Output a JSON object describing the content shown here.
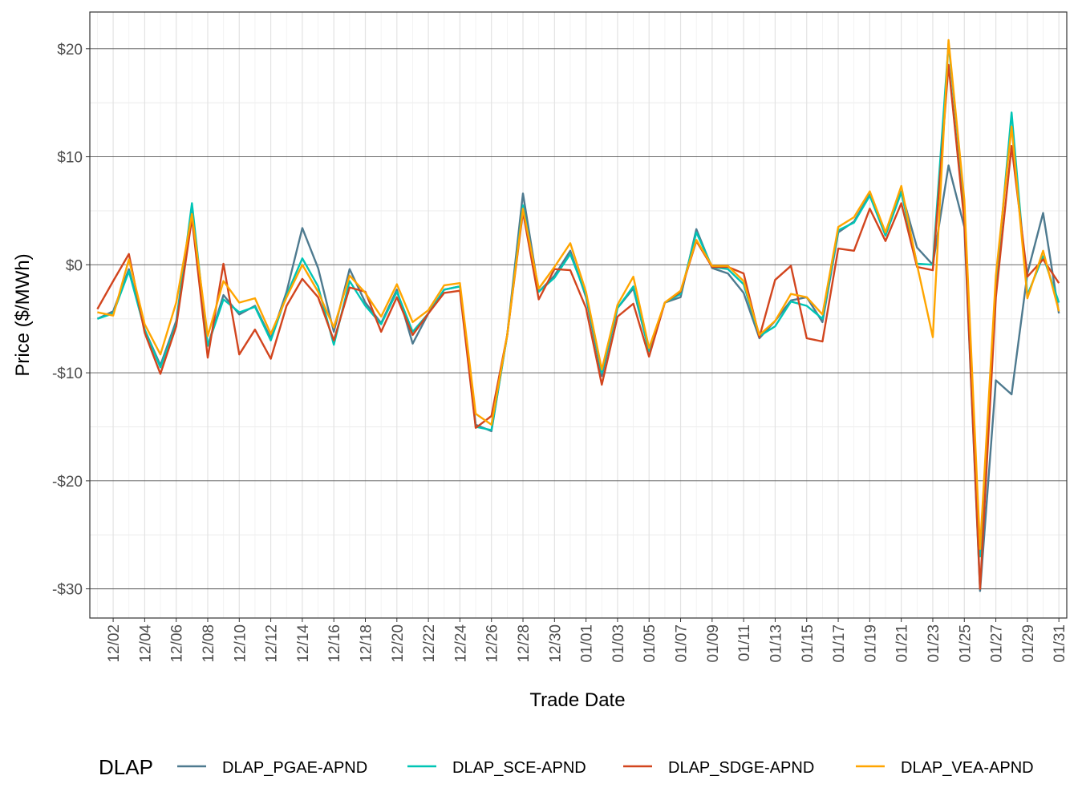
{
  "chart_data": {
    "type": "line",
    "xlabel": "Trade Date",
    "ylabel": "Price ($/MWh)",
    "ylim": [
      -32.7,
      23.4
    ],
    "yticks": [
      20,
      10,
      0,
      -10,
      -20,
      -30
    ],
    "ytick_labels": [
      "$20",
      "$10",
      "$0",
      "-$10",
      "-$20",
      "-$30"
    ],
    "grid": true,
    "legend_title": "DLAP",
    "legend_position": "bottom",
    "x": [
      "12/01",
      "12/02",
      "12/03",
      "12/04",
      "12/05",
      "12/06",
      "12/07",
      "12/08",
      "12/09",
      "12/10",
      "12/11",
      "12/12",
      "12/13",
      "12/14",
      "12/15",
      "12/16",
      "12/17",
      "12/18",
      "12/19",
      "12/20",
      "12/21",
      "12/22",
      "12/23",
      "12/24",
      "12/25",
      "12/26",
      "12/27",
      "12/28",
      "12/29",
      "12/30",
      "12/31",
      "01/01",
      "01/02",
      "01/03",
      "01/04",
      "01/05",
      "01/06",
      "01/07",
      "01/08",
      "01/09",
      "01/10",
      "01/11",
      "01/12",
      "01/13",
      "01/14",
      "01/15",
      "01/16",
      "01/17",
      "01/18",
      "01/19",
      "01/20",
      "01/21",
      "01/22",
      "01/23",
      "01/24",
      "01/25",
      "01/26",
      "01/27",
      "01/28",
      "01/29",
      "01/30",
      "01/31"
    ],
    "xtick_labels": [
      "12/02",
      "12/04",
      "12/06",
      "12/08",
      "12/10",
      "12/12",
      "12/14",
      "12/16",
      "12/18",
      "12/20",
      "12/22",
      "12/24",
      "12/26",
      "12/28",
      "12/30",
      "01/01",
      "01/03",
      "01/05",
      "01/07",
      "01/09",
      "01/11",
      "01/13",
      "01/15",
      "01/17",
      "01/19",
      "01/21",
      "01/23",
      "01/25",
      "01/27",
      "01/29",
      "01/31"
    ],
    "series": [
      {
        "name": "DLAP_PGAE-APND",
        "color": "#4e7a8f",
        "values": [
          -5.0,
          -4.3,
          -0.4,
          -6.0,
          -9.3,
          -5.2,
          5.3,
          -7.5,
          -2.8,
          -4.6,
          -3.8,
          -6.8,
          -2.5,
          3.4,
          -0.3,
          -6.2,
          -0.4,
          -3.5,
          -5.4,
          -2.3,
          -7.3,
          -4.5,
          -2.3,
          -2.0,
          -14.8,
          -15.4,
          -6.5,
          6.6,
          -2.5,
          -1.0,
          1.3,
          -3.0,
          -10.3,
          -4.0,
          -2.2,
          -8.0,
          -3.5,
          -3.0,
          3.3,
          -0.3,
          -0.8,
          -2.6,
          -6.8,
          -5.2,
          -3.3,
          -3.0,
          -5.3,
          3.0,
          4.0,
          6.5,
          2.8,
          6.8,
          1.6,
          0.0,
          9.2,
          3.5,
          -30.2,
          -10.7,
          -12.0,
          -0.8,
          4.8,
          -4.5
        ]
      },
      {
        "name": "DLAP_SCE-APND",
        "color": "#00c5b5",
        "values": [
          -5.0,
          -4.5,
          -0.6,
          -6.0,
          -9.5,
          -5.5,
          5.7,
          -7.5,
          -3.2,
          -4.4,
          -3.9,
          -7.0,
          -2.8,
          0.6,
          -2.0,
          -7.4,
          -1.5,
          -3.8,
          -5.5,
          -2.5,
          -6.2,
          -4.5,
          -2.3,
          -2.0,
          -15.0,
          -15.3,
          -6.5,
          5.5,
          -2.5,
          -1.2,
          1.0,
          -2.8,
          -10.0,
          -4.0,
          -2.0,
          -8.0,
          -3.5,
          -2.7,
          3.0,
          -0.2,
          -0.4,
          -1.8,
          -6.6,
          -5.7,
          -3.4,
          -3.8,
          -5.0,
          3.2,
          3.9,
          6.4,
          2.7,
          6.7,
          0.1,
          0.0,
          20.5,
          5.5,
          -27.0,
          -2.0,
          14.1,
          -2.8,
          0.8,
          -3.5
        ]
      },
      {
        "name": "DLAP_SDGE-APND",
        "color": "#d2451e",
        "values": [
          -4.1,
          -1.5,
          1.0,
          -6.3,
          -10.1,
          -5.7,
          4.3,
          -8.6,
          0.1,
          -8.3,
          -6.0,
          -8.7,
          -3.8,
          -1.3,
          -3.0,
          -7.0,
          -2.1,
          -2.5,
          -6.2,
          -3.0,
          -6.5,
          -4.5,
          -2.6,
          -2.4,
          -15.1,
          -14.0,
          -6.5,
          4.9,
          -3.2,
          -0.4,
          -0.5,
          -4.0,
          -11.1,
          -4.8,
          -3.6,
          -8.5,
          -3.5,
          -2.5,
          2.2,
          -0.2,
          -0.2,
          -0.8,
          -6.7,
          -1.4,
          -0.1,
          -6.8,
          -7.1,
          1.5,
          1.3,
          5.2,
          2.2,
          5.7,
          -0.2,
          -0.5,
          18.5,
          4.0,
          -30.0,
          -3.0,
          11.0,
          -1.1,
          0.5,
          -1.7
        ]
      },
      {
        "name": "DLAP_VEA-APND",
        "color": "#ffa500",
        "values": [
          -4.4,
          -4.7,
          0.5,
          -5.5,
          -8.3,
          -3.5,
          4.7,
          -6.6,
          -1.5,
          -3.5,
          -3.1,
          -6.4,
          -3.0,
          0.0,
          -2.5,
          -5.8,
          -1.0,
          -2.6,
          -4.8,
          -1.8,
          -5.3,
          -4.2,
          -1.9,
          -1.7,
          -13.8,
          -14.8,
          -6.5,
          5.2,
          -2.2,
          -0.2,
          2.0,
          -2.5,
          -9.7,
          -3.7,
          -1.1,
          -7.7,
          -3.5,
          -2.4,
          2.3,
          -0.1,
          -0.1,
          -1.5,
          -6.5,
          -5.2,
          -2.7,
          -3.0,
          -4.6,
          3.5,
          4.4,
          6.8,
          3.0,
          7.3,
          0.0,
          -6.7,
          20.8,
          6.0,
          -26.3,
          -1.0,
          12.8,
          -3.1,
          1.3,
          -4.3
        ]
      }
    ]
  }
}
